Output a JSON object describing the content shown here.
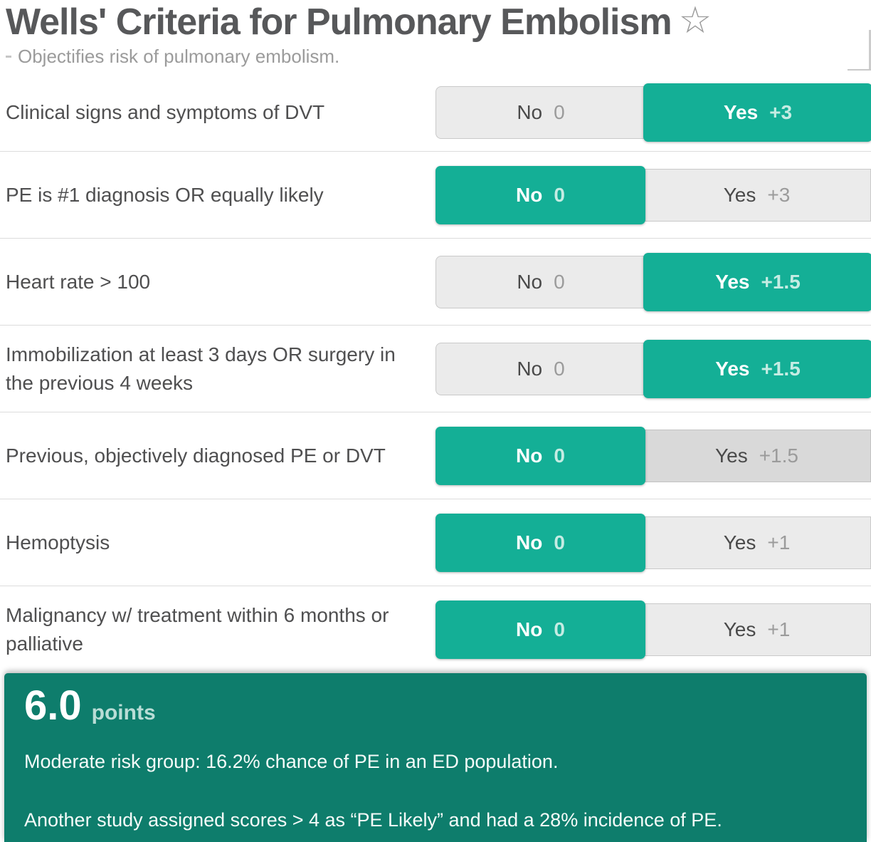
{
  "colors": {
    "accent_teal": "#14af96",
    "panel_teal": "#0e7d6c",
    "unselected_bg": "#ebebeb",
    "unselected_hover_bg": "#d9d9d9",
    "border_gray": "#c9c9c9",
    "divider": "#dcdcdc",
    "title_gray": "#57585a",
    "label_gray": "#4f4f50",
    "muted_gray": "#9b9b9b",
    "score_mint": "#c5ece3"
  },
  "header": {
    "title": "Wells' Criteria for Pulmonary Embolism",
    "star_icon": "☆",
    "subtitle": "Objectifies risk of pulmonary embolism."
  },
  "questions": [
    {
      "label": "Clinical signs and symptoms of DVT",
      "no_label": "No",
      "no_score": "0",
      "yes_label": "Yes",
      "yes_score": "+3",
      "selected": "yes"
    },
    {
      "label": "PE is #1 diagnosis OR equally likely",
      "no_label": "No",
      "no_score": "0",
      "yes_label": "Yes",
      "yes_score": "+3",
      "selected": "no"
    },
    {
      "label": "Heart rate > 100",
      "no_label": "No",
      "no_score": "0",
      "yes_label": "Yes",
      "yes_score": "+1.5",
      "selected": "yes"
    },
    {
      "label": "Immobilization at least 3 days OR surgery in the previous 4 weeks",
      "no_label": "No",
      "no_score": "0",
      "yes_label": "Yes",
      "yes_score": "+1.5",
      "selected": "yes"
    },
    {
      "label": "Previous, objectively diagnosed PE or DVT",
      "no_label": "No",
      "no_score": "0",
      "yes_label": "Yes",
      "yes_score": "+1.5",
      "selected": "no",
      "yes_state": "hover"
    },
    {
      "label": "Hemoptysis",
      "no_label": "No",
      "no_score": "0",
      "yes_label": "Yes",
      "yes_score": "+1",
      "selected": "no"
    },
    {
      "label": "Malignancy w/ treatment within 6 months or palliative",
      "no_label": "No",
      "no_score": "0",
      "yes_label": "Yes",
      "yes_score": "+1",
      "selected": "no"
    }
  ],
  "result": {
    "score": "6.0",
    "unit": "points",
    "line1": "Moderate risk group: 16.2% chance of PE in an ED population.",
    "line2": "Another study assigned scores > 4 as “PE Likely” and had a 28% incidence of PE."
  }
}
